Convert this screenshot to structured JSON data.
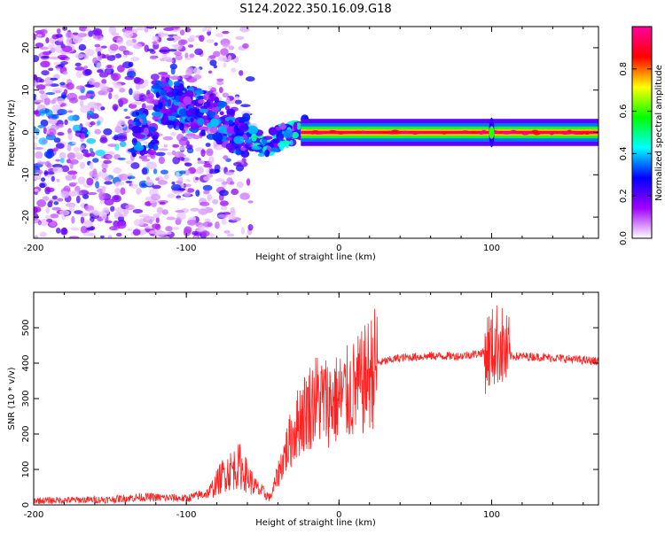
{
  "title": "S124.2022.350.16.09.G18",
  "chart_data": [
    {
      "type": "heatmap",
      "title": "",
      "xlabel": "Height of straight line (km)",
      "ylabel": "Frequency (Hz)",
      "xlim": [
        -200,
        170
      ],
      "ylim": [
        -25,
        25
      ],
      "xticks": [
        -200,
        -100,
        0,
        100
      ],
      "yticks": [
        -20,
        -10,
        0,
        10,
        20
      ],
      "colorbar": {
        "label": "Normalized spectral amplitude",
        "range": [
          0,
          1
        ],
        "ticks": [
          0.0,
          0.2,
          0.4,
          0.6,
          0.8
        ],
        "colormap": [
          "#ffffff",
          "#a000ff",
          "#0000ff",
          "#00ffff",
          "#00ff00",
          "#ffff00",
          "#ff0000",
          "#ff00a0"
        ]
      },
      "ridge": {
        "description_points": [
          {
            "x": -120,
            "y": 8
          },
          {
            "x": -90,
            "y": 5
          },
          {
            "x": -70,
            "y": 1
          },
          {
            "x": -50,
            "y": -3
          },
          {
            "x": -30,
            "y": 0
          },
          {
            "x": -20,
            "y": 1
          },
          {
            "x": 0,
            "y": 0
          },
          {
            "x": 170,
            "y": 0
          }
        ]
      }
    },
    {
      "type": "line",
      "title": "",
      "xlabel": "Height of straight line (km)",
      "ylabel": "SNR (10 * v/v)",
      "xlim": [
        -200,
        170
      ],
      "ylim": [
        0,
        600
      ],
      "xticks": [
        -200,
        -100,
        0,
        100
      ],
      "yticks": [
        0,
        100,
        200,
        300,
        400,
        500
      ],
      "color": "#ff2020",
      "series": [
        {
          "name": "",
          "x": [
            -200,
            -150,
            -130,
            -100,
            -85,
            -75,
            -65,
            -55,
            -45,
            -35,
            -25,
            -15,
            -5,
            5,
            15,
            25,
            40,
            60,
            80,
            95,
            100,
            105,
            110,
            130,
            150,
            170
          ],
          "values": [
            12,
            15,
            22,
            18,
            35,
            90,
            110,
            50,
            20,
            150,
            250,
            300,
            290,
            310,
            340,
            400,
            415,
            420,
            420,
            430,
            440,
            460,
            420,
            418,
            412,
            405
          ]
        }
      ]
    }
  ]
}
